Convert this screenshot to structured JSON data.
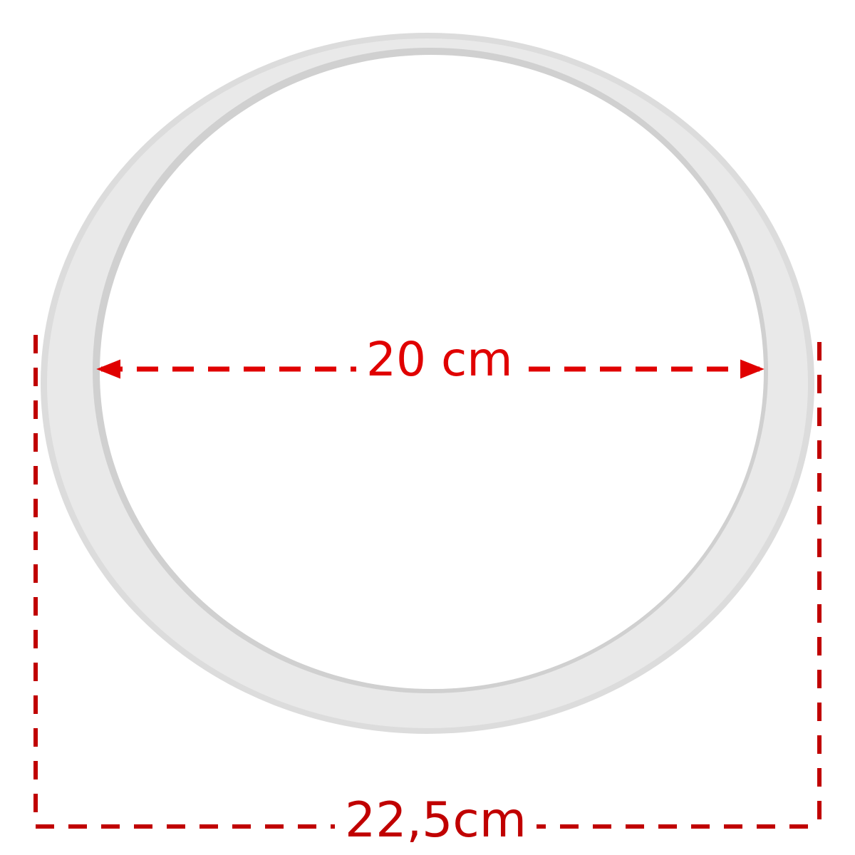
{
  "diagram": {
    "subject": "gasket-ring",
    "inner_diameter": {
      "label": "20 cm",
      "color": "#e00000"
    },
    "outer_diameter": {
      "label": "22,5cm",
      "color": "#c00000"
    },
    "ring_colors": {
      "outer_edge": "#dcdcdc",
      "face": "#e9e9e9",
      "inner_edge": "#d0d0d0"
    }
  }
}
